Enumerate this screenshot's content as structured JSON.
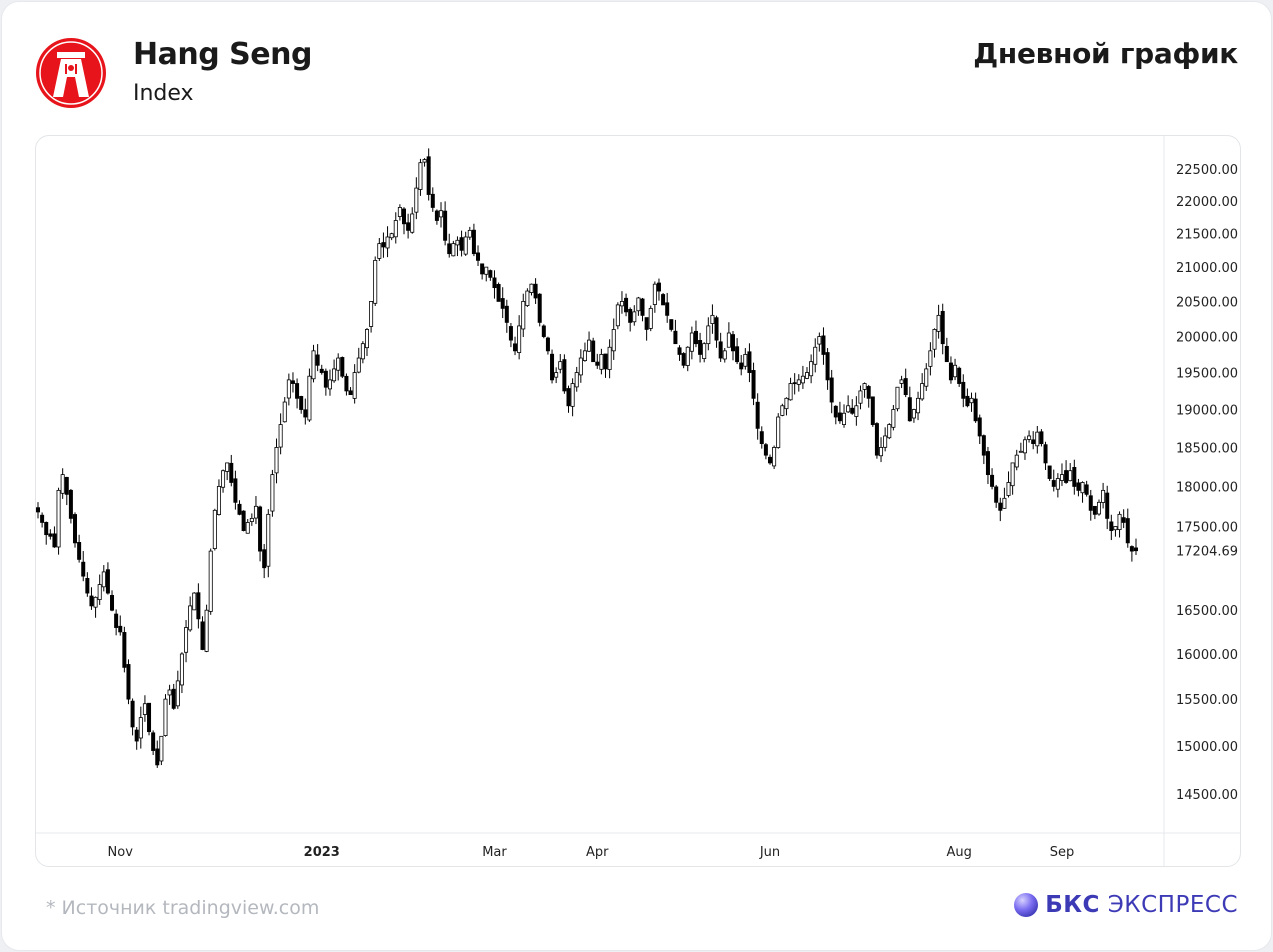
{
  "header": {
    "instrument_name": "Hang Seng",
    "instrument_type": "Index",
    "period_label": "Дневной график",
    "logo_icon": "hang-seng-bank-logo",
    "logo_color": "#e8141b"
  },
  "footer": {
    "source_text": "*  Источник tradingview.com",
    "brand_name_bold": "БКС",
    "brand_name_rest": "ЭКСПРЕСС",
    "brand_color": "#3d3ab6",
    "brand_icon": "bks-sphere-icon"
  },
  "chart_data": {
    "type": "candlestick",
    "title": "",
    "xlabel": "",
    "ylabel": "",
    "ylim": [
      14000,
      22750
    ],
    "y_scale": "log",
    "y_ticks": [
      14500,
      15000,
      15500,
      16000,
      16500,
      17500,
      18000,
      18500,
      19000,
      19500,
      20000,
      20500,
      21000,
      21500,
      22000,
      22500
    ],
    "y_tick_labels": [
      "14500.00",
      "15000.00",
      "15500.00",
      "16000.00",
      "16500.00",
      "17500.00",
      "18000.00",
      "18500.00",
      "19000.00",
      "19500.00",
      "20000.00",
      "20500.00",
      "21000.00",
      "21500.00",
      "22000.00",
      "22500.00"
    ],
    "last_price": 17204.69,
    "last_price_label": "17204.69",
    "x_ticks": [
      {
        "label": "Nov",
        "bold": false
      },
      {
        "label": "2023",
        "bold": true
      },
      {
        "label": "Mar",
        "bold": false
      },
      {
        "label": "Apr",
        "bold": false
      },
      {
        "label": "Jun",
        "bold": false
      },
      {
        "label": "Aug",
        "bold": false
      },
      {
        "label": "Sep",
        "bold": false
      }
    ],
    "x_tick_candle_index": [
      20,
      69,
      111,
      136,
      178,
      224,
      249
    ],
    "grid": false,
    "up_color": "#ffffff",
    "down_color": "#000000",
    "close_series": [
      17680,
      17550,
      17400,
      17380,
      17250,
      17950,
      18150,
      17900,
      17600,
      17300,
      17100,
      16900,
      16700,
      16550,
      16650,
      16800,
      16950,
      16700,
      16500,
      16300,
      16250,
      15850,
      15500,
      15200,
      15050,
      15300,
      15450,
      15150,
      14950,
      14800,
      15100,
      15500,
      15600,
      15400,
      15700,
      16000,
      16300,
      16550,
      16700,
      16400,
      16050,
      16500,
      17200,
      17700,
      18000,
      18200,
      18300,
      18050,
      17800,
      17650,
      17450,
      17550,
      17600,
      17750,
      17200,
      17000,
      17650,
      18150,
      18500,
      18800,
      19100,
      19400,
      19350,
      19150,
      19000,
      18900,
      19450,
      19800,
      19600,
      19500,
      19300,
      19400,
      19550,
      19700,
      19450,
      19250,
      19200,
      19500,
      19700,
      19900,
      20100,
      20500,
      21100,
      21350,
      21300,
      21450,
      21500,
      21700,
      21900,
      21650,
      21550,
      21800,
      22200,
      22600,
      22650,
      22100,
      21900,
      21700,
      21850,
      21400,
      21200,
      21350,
      21400,
      21250,
      21450,
      21550,
      21200,
      21100,
      20900,
      21000,
      20850,
      20700,
      20500,
      20400,
      20200,
      19950,
      19800,
      20150,
      20500,
      20650,
      20750,
      20550,
      20200,
      20000,
      19800,
      19400,
      19500,
      19650,
      19250,
      19050,
      19350,
      19500,
      19700,
      19800,
      19950,
      19650,
      19600,
      19750,
      19550,
      19850,
      20100,
      20450,
      20500,
      20350,
      20200,
      20350,
      20550,
      20300,
      20100,
      20400,
      20750,
      20650,
      20450,
      20300,
      20100,
      19900,
      19750,
      19600,
      19850,
      20050,
      19900,
      19750,
      19900,
      20150,
      20300,
      19950,
      19700,
      19800,
      20050,
      19800,
      19650,
      19550,
      19750,
      19500,
      19150,
      18750,
      18550,
      18400,
      18300,
      18500,
      18900,
      19050,
      19150,
      19350,
      19350,
      19400,
      19450,
      19500,
      19650,
      19850,
      20000,
      19750,
      19400,
      19100,
      18900,
      18850,
      18950,
      19050,
      18950,
      19050,
      19250,
      19350,
      19150,
      18800,
      18400,
      18500,
      18650,
      18800,
      19000,
      19300,
      19400,
      19200,
      18850,
      19000,
      19150,
      19350,
      19550,
      19800,
      20100,
      20300,
      19900,
      19650,
      19400,
      19600,
      19350,
      19150,
      19050,
      19150,
      18850,
      18650,
      18400,
      18150,
      18000,
      17800,
      17700,
      17850,
      18050,
      18300,
      18400,
      18450,
      18600,
      18650,
      18550,
      18700,
      18550,
      18300,
      18100,
      18000,
      18100,
      18150,
      18050,
      18200,
      18000,
      17950,
      18050,
      17900,
      17700,
      17650,
      17800,
      17950,
      17600,
      17450,
      17500,
      17650,
      17550,
      17300,
      17200,
      17204.69
    ]
  }
}
